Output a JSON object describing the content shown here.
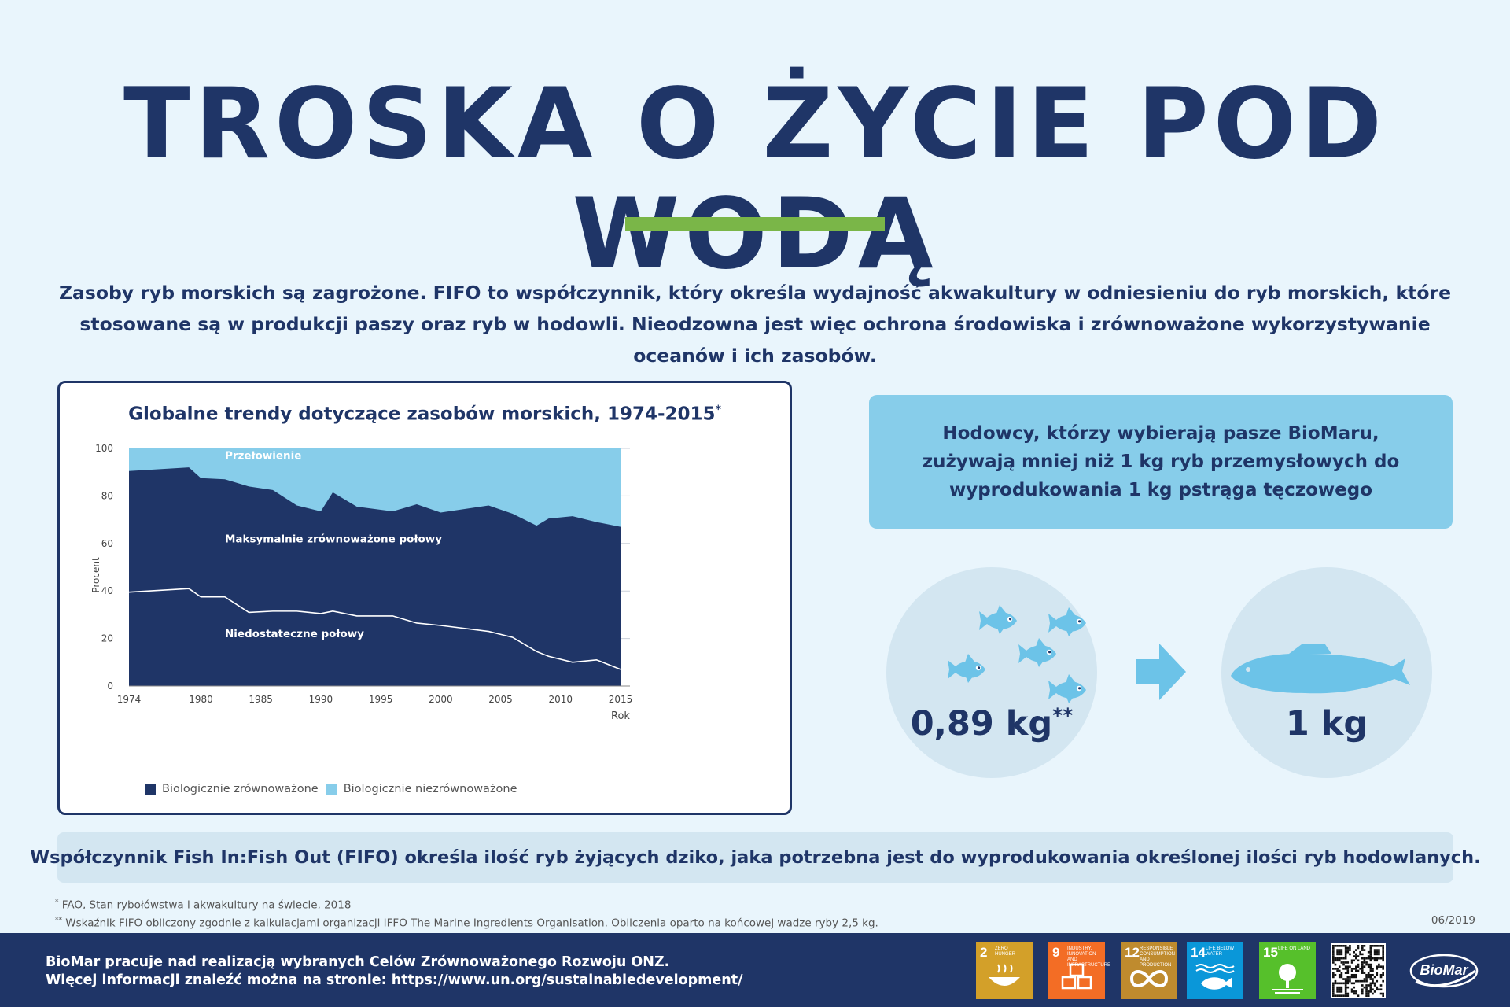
{
  "title": "TROSKA O ŻYCIE POD WODĄ",
  "intro": "Zasoby ryb morskich są zagrożone. FIFO to współczynnik, który określa wydajność akwakultury w odniesieniu do ryb morskich, które stosowane są w produkcji paszy oraz ryb w hodowli. Nieodzowna jest więc ochrona środowiska i zrównoważone wykorzystywanie oceanów i ich zasobów.",
  "chart_data": {
    "type": "area",
    "title": "Globalne trendy dotyczące zasobów morskich, 1974-2015",
    "title_mark": "*",
    "ylabel": "Procent",
    "xlabel": "Rok",
    "ylim": [
      0,
      100
    ],
    "xlim": [
      1974,
      2015
    ],
    "yticks": [
      0,
      20,
      40,
      60,
      80,
      100
    ],
    "xticks": [
      1974,
      1980,
      1985,
      1990,
      1995,
      2000,
      2005,
      2010,
      2015
    ],
    "grid": "horizontal",
    "legend_position": "bottom-left",
    "region_labels": [
      "Przełowienie",
      "Maksymalnie zrównoważone połowy",
      "Niedostateczne połowy"
    ],
    "series": [
      {
        "name": "Biologicznie zrównoważone",
        "color": "#1f3567",
        "x": [
          1974,
          1979,
          1980,
          1982,
          1984,
          1986,
          1988,
          1990,
          1991,
          1993,
          1996,
          1998,
          2000,
          2004,
          2006,
          2008,
          2009,
          2011,
          2013,
          2015
        ],
        "values": [
          90.5,
          92,
          87.5,
          87,
          84,
          82.5,
          76,
          73.5,
          81.5,
          75.5,
          73.5,
          76.5,
          73,
          76,
          72.5,
          67.5,
          70.5,
          71.5,
          69,
          67
        ]
      },
      {
        "name": "Biologicznie niezrównoważone",
        "color": "#87cdea",
        "x": [
          1974,
          2015
        ],
        "values": [
          100,
          100
        ]
      }
    ],
    "underfished_line": {
      "color": "#ffffff",
      "x": [
        1974,
        1979,
        1980,
        1982,
        1984,
        1986,
        1988,
        1990,
        1991,
        1993,
        1996,
        1998,
        2000,
        2004,
        2006,
        2008,
        2009,
        2011,
        2013,
        2015
      ],
      "values": [
        39.5,
        41,
        37.5,
        37.5,
        31,
        31.5,
        31.5,
        30.5,
        31.5,
        29.5,
        29.5,
        26.5,
        25.5,
        23,
        20.5,
        14.5,
        12.5,
        10,
        11,
        7
      ]
    }
  },
  "callout": {
    "line1": "Hodowcy, którzy wybierają pasze BioMaru,",
    "line2": "zużywają mniej niż 1 kg ryb przemysłowych do",
    "line3": "wyprodukowania 1 kg pstrąga tęczowego"
  },
  "fish_in": {
    "value": "0,89 kg",
    "mark": "**"
  },
  "fish_out": {
    "value": "1 kg"
  },
  "fifo_note": "Współczynnik Fish In:Fish Out (FIFO) określa ilość ryb żyjących dziko, jaka potrzebna jest do wyprodukowania określonej ilości ryb hodowlanych.",
  "footnotes": {
    "one_mark": "*",
    "one": "FAO, Stan rybołówstwa i akwakultury na świecie, 2018",
    "two_mark": "**",
    "two": "Wskaźnik FIFO obliczony zgodnie z kalkulacjami organizacji IFFO The Marine Ingredients Organisation. Obliczenia oparto na końcowej wadze ryby 2,5 kg."
  },
  "date": "06/2019",
  "footer": {
    "line1": "BioMar pracuje nad realizacją wybranych Celów Zrównoważonego Rozwoju ONZ.",
    "line2": "Więcej informacji znaleźć można na stronie: https://www.un.org/sustainabledevelopment/",
    "logo": "BioMar"
  },
  "sdg_tiles": [
    {
      "num": "2",
      "label": "ZERO HUNGER",
      "color": "#d3a029",
      "icon": "bowl-icon"
    },
    {
      "num": "9",
      "label": "INDUSTRY, INNOVATION AND INFRASTRUCTURE",
      "color": "#f36d25",
      "icon": "cubes-icon"
    },
    {
      "num": "12",
      "label": "RESPONSIBLE CONSUMPTION AND PRODUCTION",
      "color": "#bf8b2e",
      "icon": "infinity-icon"
    },
    {
      "num": "14",
      "label": "LIFE BELOW WATER",
      "color": "#0a97d9",
      "icon": "fish-icon"
    },
    {
      "num": "15",
      "label": "LIFE ON LAND",
      "color": "#56c02b",
      "icon": "tree-icon"
    }
  ],
  "colors": {
    "navy": "#1f3567",
    "light_blue": "#87cdea",
    "accent_green": "#7ab648",
    "background": "#e9f5fc"
  }
}
